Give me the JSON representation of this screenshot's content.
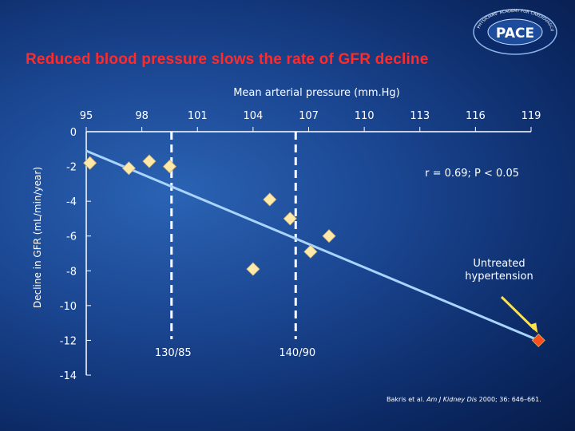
{
  "slide": {
    "title": "Reduced blood pressure slows the rate of GFR decline",
    "citation_authors": "Bakris et al.",
    "citation_journal": "Am J Kidney Dis",
    "citation_rest": " 2000; 36: 646–661.",
    "logo_text": "PACE",
    "logo_ring_text": "PHYSICIANS' ACADEMY FOR CARDIOVASCULAR EDUCATION"
  },
  "chart_data": {
    "type": "scatter",
    "title": "",
    "xlabel": "Mean arterial pressure (mm.Hg)",
    "ylabel": "Decline in GFR (mL/min/year)",
    "x_ticks": [
      95,
      98,
      101,
      104,
      107,
      110,
      113,
      116,
      119
    ],
    "y_ticks": [
      0,
      -2,
      -4,
      -6,
      -8,
      -10,
      -12,
      -14
    ],
    "xlim": [
      95,
      119
    ],
    "ylim": [
      -14,
      0
    ],
    "axis_position": "top",
    "grid": false,
    "colors": {
      "points": "#ffe9a8",
      "highlight": "#ff4e1a",
      "line": "#a8d4ff",
      "arrow": "#ffe14a"
    },
    "points": [
      {
        "x": 95.2,
        "y": -1.8
      },
      {
        "x": 97.3,
        "y": -2.1
      },
      {
        "x": 98.4,
        "y": -1.7
      },
      {
        "x": 99.5,
        "y": -2.0
      },
      {
        "x": 104.9,
        "y": -3.9
      },
      {
        "x": 106.0,
        "y": -5.0
      },
      {
        "x": 104.0,
        "y": -7.9
      },
      {
        "x": 107.1,
        "y": -6.9
      },
      {
        "x": 108.1,
        "y": -6.0
      }
    ],
    "highlight_point": {
      "x": 119.4,
      "y": -12.0,
      "label": "Untreated\nhypertension"
    },
    "regression": {
      "from": {
        "x": 95.0,
        "y": -1.1
      },
      "to": {
        "x": 119.4,
        "y": -12.0
      },
      "stat_text": "r = 0.69; P < 0.05"
    },
    "reference_lines": [
      {
        "x": 99.6,
        "label": "130/85"
      },
      {
        "x": 106.3,
        "label": "140/90"
      }
    ]
  }
}
